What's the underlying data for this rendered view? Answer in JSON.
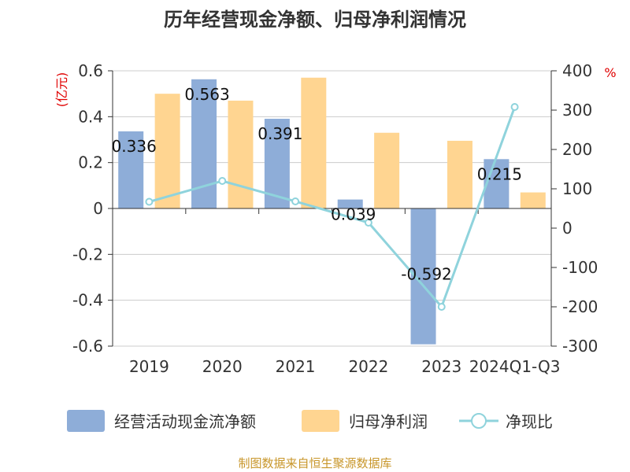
{
  "chart_data": {
    "type": "bar",
    "title": "历年经营现金净额、归母净利润情况",
    "categories": [
      "2019",
      "2020",
      "2021",
      "2022",
      "2023",
      "2024Q1-Q3"
    ],
    "series": [
      {
        "name": "经营活动现金流净额",
        "kind": "bar",
        "axis": "left",
        "color": "#8eadd8",
        "values": [
          0.336,
          0.563,
          0.391,
          0.039,
          -0.592,
          0.215
        ],
        "labels": [
          "0.336",
          "0.563",
          "0.391",
          "0.039",
          "-0.592",
          "0.215"
        ]
      },
      {
        "name": "归母净利润",
        "kind": "bar",
        "axis": "left",
        "color": "#ffd591",
        "values": [
          0.5,
          0.47,
          0.57,
          0.33,
          0.295,
          0.07
        ]
      },
      {
        "name": "净现比",
        "kind": "line",
        "axis": "right",
        "color": "#8fd3dc",
        "values": [
          67,
          120,
          68,
          14,
          -200,
          308
        ]
      }
    ],
    "ylabel_left": "(亿元)",
    "ylabel_right": "%",
    "ylim_left": [
      -0.6,
      0.6
    ],
    "ylim_right": [
      -300,
      400
    ],
    "yticks_left": [
      "0.6",
      "0.4",
      "0.2",
      "0",
      "-0.2",
      "-0.4",
      "-0.6"
    ],
    "yticks_right": [
      "400",
      "300",
      "200",
      "100",
      "0",
      "-100",
      "-200",
      "-300"
    ],
    "grid": true,
    "legend_position": "bottom"
  },
  "source": "制图数据来自恒生聚源数据库"
}
